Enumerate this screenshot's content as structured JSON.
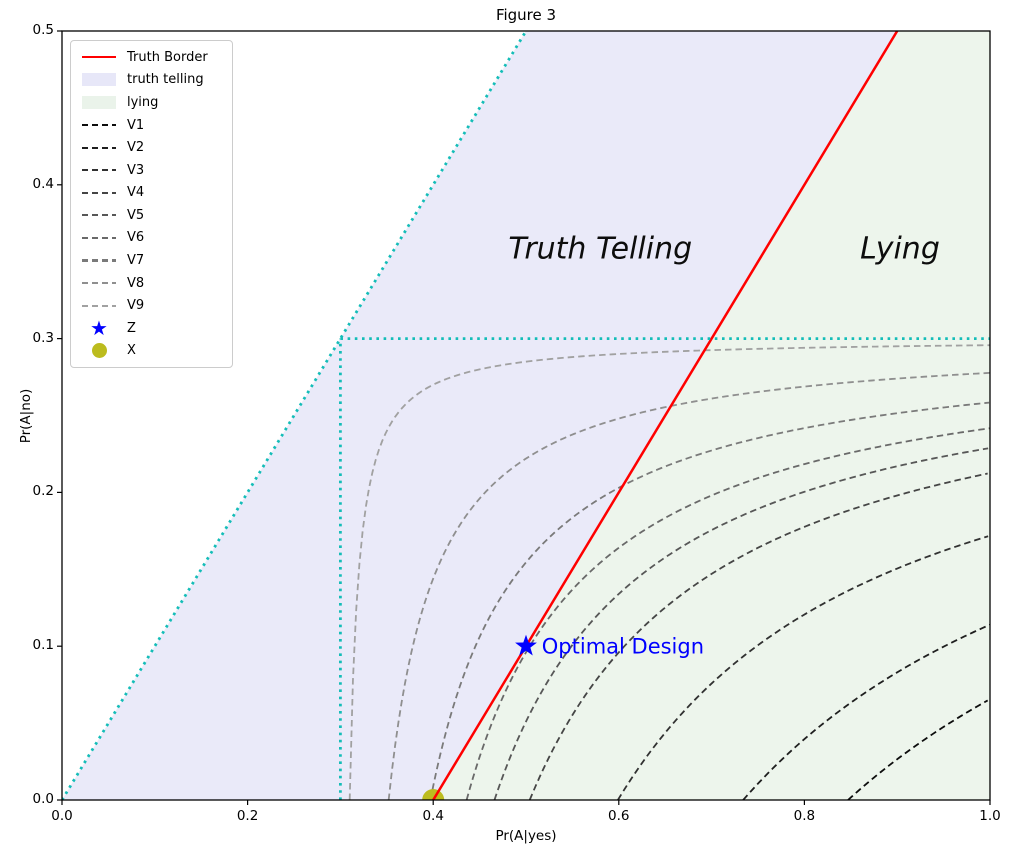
{
  "figure": {
    "title": "Figure 3"
  },
  "axes": {
    "xlabel": "Pr(A|yes)",
    "ylabel": "Pr(A|no)",
    "xlim": [
      0.0,
      1.0
    ],
    "ylim": [
      0.0,
      0.5
    ],
    "xtick_labels": [
      "0.0",
      "0.2",
      "0.4",
      "0.6",
      "0.8",
      "1.0"
    ],
    "xtick_values": [
      0.0,
      0.2,
      0.4,
      0.6,
      0.8,
      1.0
    ],
    "ytick_labels": [
      "0.0",
      "0.1",
      "0.2",
      "0.3",
      "0.4",
      "0.5"
    ],
    "ytick_values": [
      0.0,
      0.1,
      0.2,
      0.3,
      0.4,
      0.5
    ]
  },
  "chart_data": {
    "type": "line",
    "title": "Figure 3",
    "xlabel": "Pr(A|yes)",
    "ylabel": "Pr(A|no)",
    "xlim": [
      0.0,
      1.0
    ],
    "ylim": [
      0.0,
      0.5
    ],
    "grid": false,
    "legend_position": "upper left",
    "truth_border": {
      "label": "Truth Border",
      "color": "#ff0000",
      "style": "solid",
      "points": [
        [
          0.4,
          0.0
        ],
        [
          0.9,
          0.5
        ]
      ]
    },
    "regions": [
      {
        "label": "truth telling",
        "color": "#eaeaf9",
        "polygon": [
          [
            0.0,
            0.0
          ],
          [
            0.5,
            0.5
          ],
          [
            0.9,
            0.5
          ],
          [
            0.4,
            0.0
          ]
        ]
      },
      {
        "label": "lying",
        "color": "#edf5ec",
        "polygon": [
          [
            0.4,
            0.0
          ],
          [
            0.9,
            0.5
          ],
          [
            1.0,
            0.5
          ],
          [
            1.0,
            0.0
          ]
        ]
      }
    ],
    "guide_lines": {
      "color": "#14bdb8",
      "style": "dotted",
      "segments": [
        {
          "name": "diagonal-identity",
          "points": [
            [
              0.0,
              0.0
            ],
            [
              0.5,
              0.5
            ]
          ]
        },
        {
          "name": "horizontal-0.3",
          "points": [
            [
              0.3,
              0.3
            ],
            [
              1.0,
              0.3
            ]
          ]
        },
        {
          "name": "vertical-0.3",
          "points": [
            [
              0.3,
              0.0
            ],
            [
              0.3,
              0.3
            ]
          ]
        }
      ]
    },
    "v_curves": {
      "model": "(x - 0.3) * (0.3 - y) = k  (hyperbolas asymptotic to x=0.3 and y=0.3)",
      "style": "dashed",
      "curves": [
        {
          "label": "V1",
          "k": 0.1641,
          "bottom_crossing_x": 0.847,
          "right_edge_y": 0.066,
          "color": "#0d0d0d"
        },
        {
          "label": "V2",
          "k": 0.1302,
          "bottom_crossing_x": 0.734,
          "right_edge_y": 0.114,
          "color": "#1f1f1f"
        },
        {
          "label": "V3",
          "k": 0.0897,
          "bottom_crossing_x": 0.599,
          "right_edge_y": 0.172,
          "color": "#313131"
        },
        {
          "label": "V4",
          "k": 0.0612,
          "bottom_crossing_x": 0.504,
          "right_edge_y": 0.213,
          "color": "#454545"
        },
        {
          "label": "V5",
          "k": 0.0498,
          "bottom_crossing_x": 0.466,
          "right_edge_y": 0.229,
          "color": "#575757"
        },
        {
          "label": "V6",
          "k": 0.0408,
          "bottom_crossing_x": 0.436,
          "right_edge_y": 0.242,
          "color": "#696969"
        },
        {
          "label": "V7",
          "k": 0.0291,
          "bottom_crossing_x": 0.397,
          "right_edge_y": 0.258,
          "color": "#7a7a7a"
        },
        {
          "label": "V8",
          "k": 0.0156,
          "bottom_crossing_x": 0.352,
          "right_edge_y": 0.278,
          "color": "#8f8f8f"
        },
        {
          "label": "V9",
          "k": 0.003,
          "bottom_crossing_x": 0.31,
          "right_edge_y": 0.296,
          "color": "#a1a1a1"
        }
      ]
    },
    "markers": [
      {
        "label": "Z",
        "x": 0.5,
        "y": 0.1,
        "marker": "star",
        "color": "#0000ff"
      },
      {
        "label": "X",
        "x": 0.4,
        "y": 0.0,
        "marker": "circle",
        "color": "#bcbc1e"
      }
    ],
    "annotations": [
      {
        "text": "Truth Telling",
        "x": 0.58,
        "y": 0.359,
        "color": "#0d0d0d",
        "italic": true,
        "size": 30,
        "anchor": "middle"
      },
      {
        "text": "Lying",
        "x": 0.903,
        "y": 0.359,
        "color": "#0d0d0d",
        "italic": true,
        "size": 30,
        "anchor": "middle"
      },
      {
        "text": "Optimal Design",
        "x": 0.517,
        "y": 0.1,
        "color": "#0000ff",
        "italic": false,
        "size": 21,
        "anchor": "start"
      }
    ]
  },
  "legend": {
    "entries": [
      {
        "label": "Truth Border",
        "type": "line",
        "color": "#ff0000"
      },
      {
        "label": "truth telling",
        "type": "patch",
        "color": "#e7e7f8"
      },
      {
        "label": "lying",
        "type": "patch",
        "color": "#eaf3ea"
      },
      {
        "label": "V1",
        "type": "dashed",
        "color": "#0d0d0d"
      },
      {
        "label": "V2",
        "type": "dashed",
        "color": "#1f1f1f"
      },
      {
        "label": "V3",
        "type": "dashed",
        "color": "#313131"
      },
      {
        "label": "V4",
        "type": "dashed",
        "color": "#454545"
      },
      {
        "label": "V5",
        "type": "dashed",
        "color": "#575757"
      },
      {
        "label": "V6",
        "type": "dashed",
        "color": "#696969"
      },
      {
        "label": "V7",
        "type": "dashed",
        "color": "#7a7a7a"
      },
      {
        "label": "V8",
        "type": "dashed",
        "color": "#8f8f8f"
      },
      {
        "label": "V9",
        "type": "dashed",
        "color": "#a1a1a1"
      },
      {
        "label": "Z",
        "type": "star",
        "color": "#0000ff"
      },
      {
        "label": "X",
        "type": "dot",
        "color": "#bcbc1e"
      }
    ]
  }
}
